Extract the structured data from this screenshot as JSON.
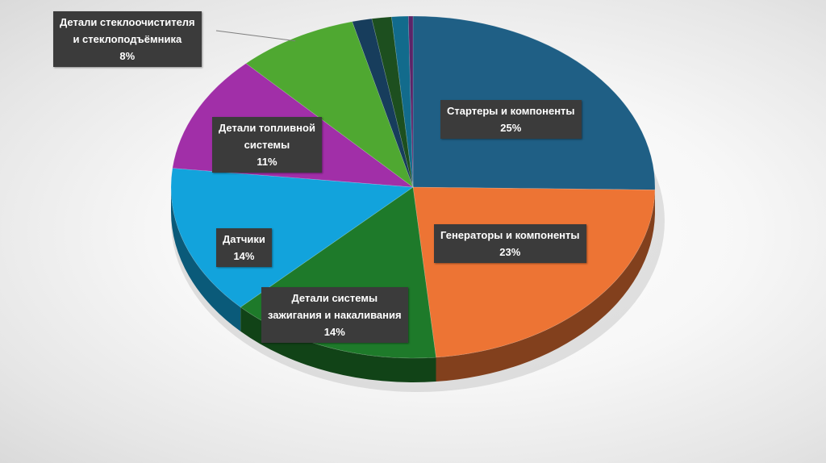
{
  "chart_data": {
    "type": "pie",
    "title": "",
    "slices": [
      {
        "label": "Стартеры и компоненты",
        "value": 25,
        "display": "25%",
        "color": "#1f5f85"
      },
      {
        "label": "Генераторы и компоненты",
        "value": 23,
        "display": "23%",
        "color": "#ed7434"
      },
      {
        "label": "Детали системы зажигания и накаливания",
        "value": 14,
        "display": "14%",
        "color": "#1e7a2a"
      },
      {
        "label": "Датчики",
        "value": 14,
        "display": "14%",
        "color": "#12a3dc"
      },
      {
        "label": "Детали топливной системы",
        "value": 11,
        "display": "11%",
        "color": "#a12fa8"
      },
      {
        "label": "Детали стеклоочистителя и стеклоподъёмника",
        "value": 8,
        "display": "8%",
        "color": "#4fa831"
      },
      {
        "label": "",
        "value": 1.3,
        "display": "",
        "color": "#173d5c"
      },
      {
        "label": "",
        "value": 1.3,
        "display": "",
        "color": "#1d4f1f"
      },
      {
        "label": "",
        "value": 1.1,
        "display": "",
        "color": "#126b8c"
      },
      {
        "label": "",
        "value": 0.3,
        "display": "",
        "color": "#5c2468"
      }
    ]
  },
  "labels": {
    "starters": {
      "line1": "Стартеры и компоненты",
      "pct": "25%"
    },
    "generators": {
      "line1": "Генераторы и компоненты",
      "pct": "23%"
    },
    "ignition": {
      "line1": "Детали системы",
      "line2": "зажигания и накаливания",
      "pct": "14%"
    },
    "sensors": {
      "line1": "Датчики",
      "pct": "14%"
    },
    "fuel": {
      "line1": "Детали топливной",
      "line2": "системы",
      "pct": "11%"
    },
    "wiper": {
      "line1": "Детали стеклоочистителя",
      "line2": "и стеклоподъёмника",
      "pct": "8%"
    }
  }
}
